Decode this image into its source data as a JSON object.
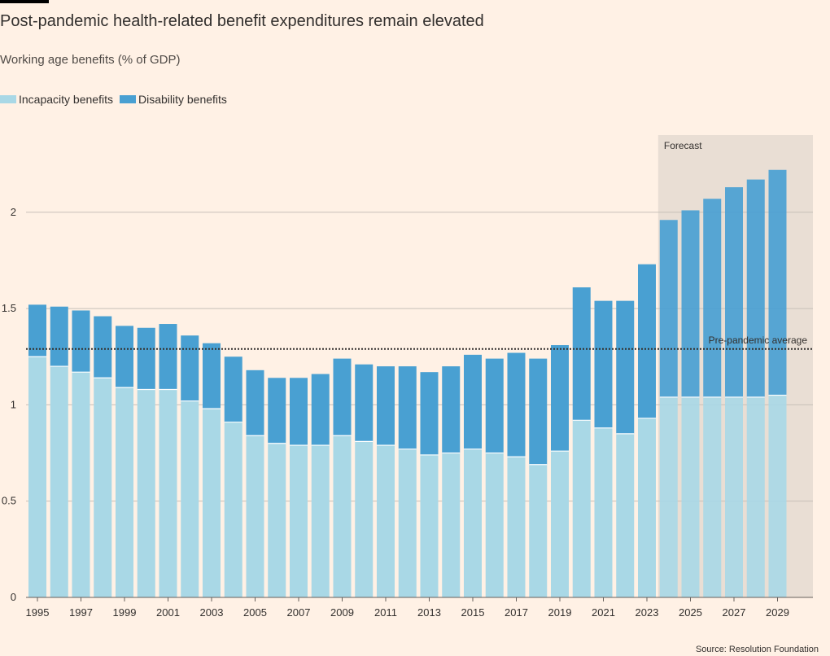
{
  "title": "Post-pandemic health-related benefit expenditures remain elevated",
  "subtitle": "Working age benefits (% of GDP)",
  "source": "Source: Resolution Foundation",
  "annotations": {
    "forecast": "Forecast",
    "reference_line": "Pre-pandemic average"
  },
  "colors": {
    "incapacity": "#A9D8E6",
    "disability": "#49A0D2",
    "forecast_shade": "#E9DED4",
    "gridline": "#C8C0B8",
    "background": "#FFF1E5"
  },
  "chart_data": {
    "type": "bar",
    "stacked": true,
    "categories": [
      "1995",
      "1996",
      "1997",
      "1998",
      "1999",
      "2000",
      "2001",
      "2002",
      "2003",
      "2004",
      "2005",
      "2006",
      "2007",
      "2008",
      "2009",
      "2010",
      "2011",
      "2012",
      "2013",
      "2014",
      "2015",
      "2016",
      "2017",
      "2018",
      "2019",
      "2020",
      "2021",
      "2022",
      "2023",
      "2024",
      "2025",
      "2026",
      "2027",
      "2028",
      "2029"
    ],
    "tick_labels": [
      "1995",
      "1997",
      "1999",
      "2001",
      "2003",
      "2005",
      "2007",
      "2009",
      "2011",
      "2013",
      "2015",
      "2017",
      "2019",
      "2021",
      "2023",
      "2025",
      "2027",
      "2029"
    ],
    "series": [
      {
        "name": "Incapacity benefits",
        "values": [
          1.25,
          1.2,
          1.17,
          1.14,
          1.09,
          1.08,
          1.08,
          1.02,
          0.98,
          0.91,
          0.84,
          0.8,
          0.79,
          0.79,
          0.84,
          0.81,
          0.79,
          0.77,
          0.74,
          0.75,
          0.77,
          0.75,
          0.73,
          0.69,
          0.76,
          0.92,
          0.88,
          0.85,
          0.93,
          1.04,
          1.04,
          1.04,
          1.04,
          1.04,
          1.05
        ]
      },
      {
        "name": "Disability benefits",
        "values": [
          0.27,
          0.31,
          0.32,
          0.32,
          0.32,
          0.32,
          0.34,
          0.34,
          0.34,
          0.34,
          0.34,
          0.34,
          0.35,
          0.37,
          0.4,
          0.4,
          0.41,
          0.43,
          0.43,
          0.45,
          0.49,
          0.49,
          0.54,
          0.55,
          0.55,
          0.69,
          0.66,
          0.69,
          0.8,
          0.92,
          0.97,
          1.03,
          1.09,
          1.13,
          1.17
        ]
      }
    ],
    "reference_line": {
      "label": "Pre-pandemic average",
      "value": 1.29
    },
    "forecast_start": "2024",
    "y_ticks": [
      0,
      0.5,
      1,
      1.5,
      2
    ],
    "y_tick_labels": [
      "0",
      "0.5",
      "1",
      "1.5",
      "2"
    ],
    "ylim": [
      0,
      2.4
    ],
    "grid": true,
    "legend_position": "top-left"
  }
}
